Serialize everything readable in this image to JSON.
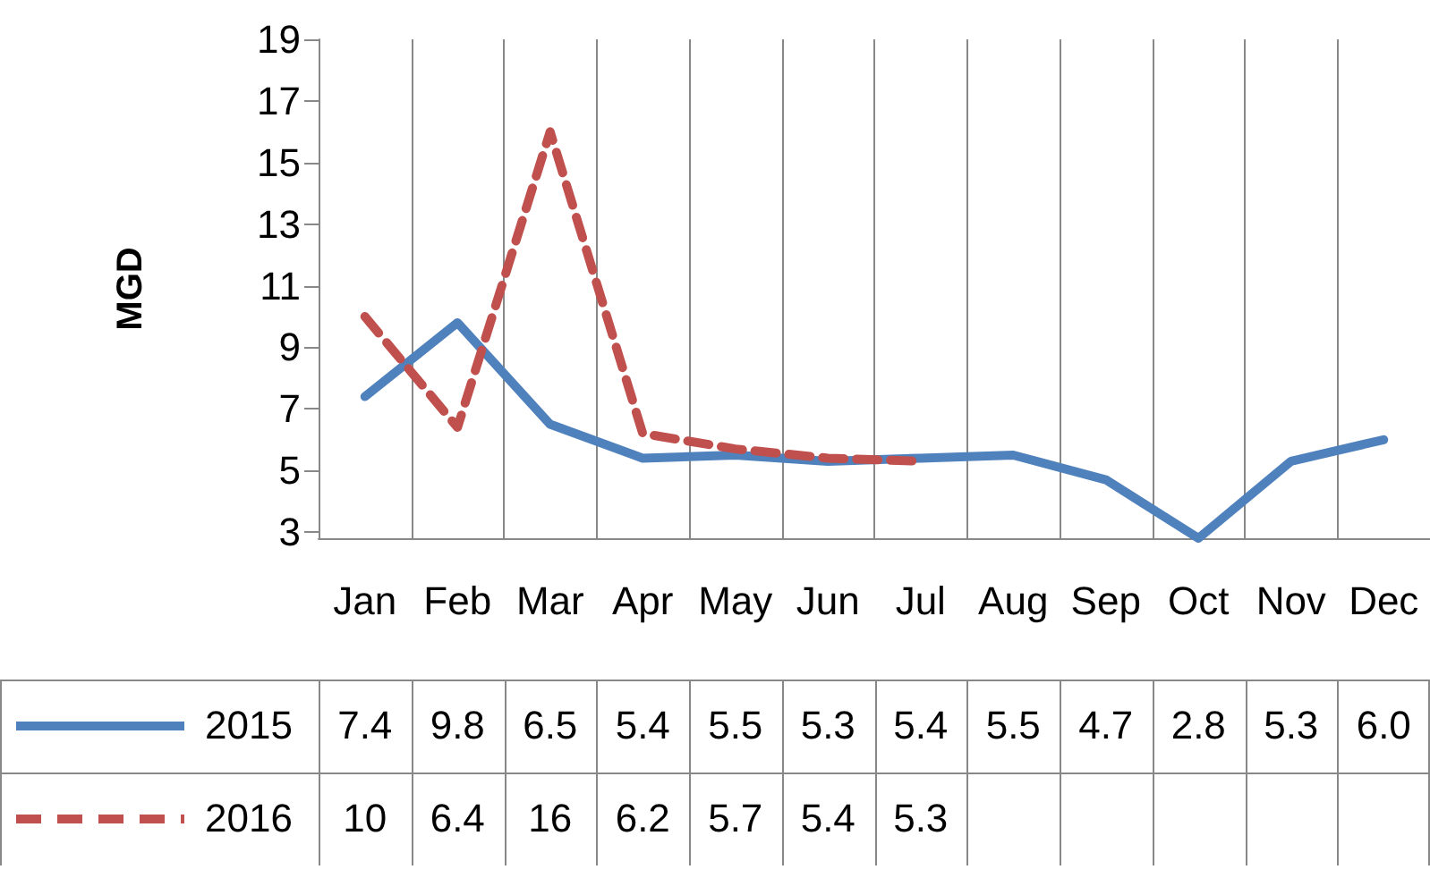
{
  "chart_data": {
    "type": "line",
    "ylabel": "MGD",
    "categories": [
      "Jan",
      "Feb",
      "Mar",
      "Apr",
      "May",
      "Jun",
      "Jul",
      "Aug",
      "Sep",
      "Oct",
      "Nov",
      "Dec"
    ],
    "series": [
      {
        "name": "2015",
        "color": "#4f81bd",
        "line_style": "solid",
        "values": [
          7.4,
          9.8,
          6.5,
          5.4,
          5.5,
          5.3,
          5.4,
          5.5,
          4.7,
          2.8,
          5.3,
          6.0
        ],
        "value_labels": [
          "7.4",
          "9.8",
          "6.5",
          "5.4",
          "5.5",
          "5.3",
          "5.4",
          "5.5",
          "4.7",
          "2.8",
          "5.3",
          "6.0"
        ]
      },
      {
        "name": "2016",
        "color": "#c0504d",
        "line_style": "dashed",
        "values": [
          10,
          6.4,
          16,
          6.2,
          5.7,
          5.4,
          5.3,
          null,
          null,
          null,
          null,
          null
        ],
        "value_labels": [
          "10",
          "6.4",
          "16",
          "6.2",
          "5.7",
          "5.4",
          "5.3",
          null,
          null,
          null,
          null,
          null
        ]
      }
    ],
    "ylim": [
      2.8,
      19
    ],
    "yticks": [
      3,
      5,
      7,
      9,
      11,
      13,
      15,
      17,
      19
    ],
    "grid": "x",
    "legend": "bottom left",
    "marker": "none"
  }
}
